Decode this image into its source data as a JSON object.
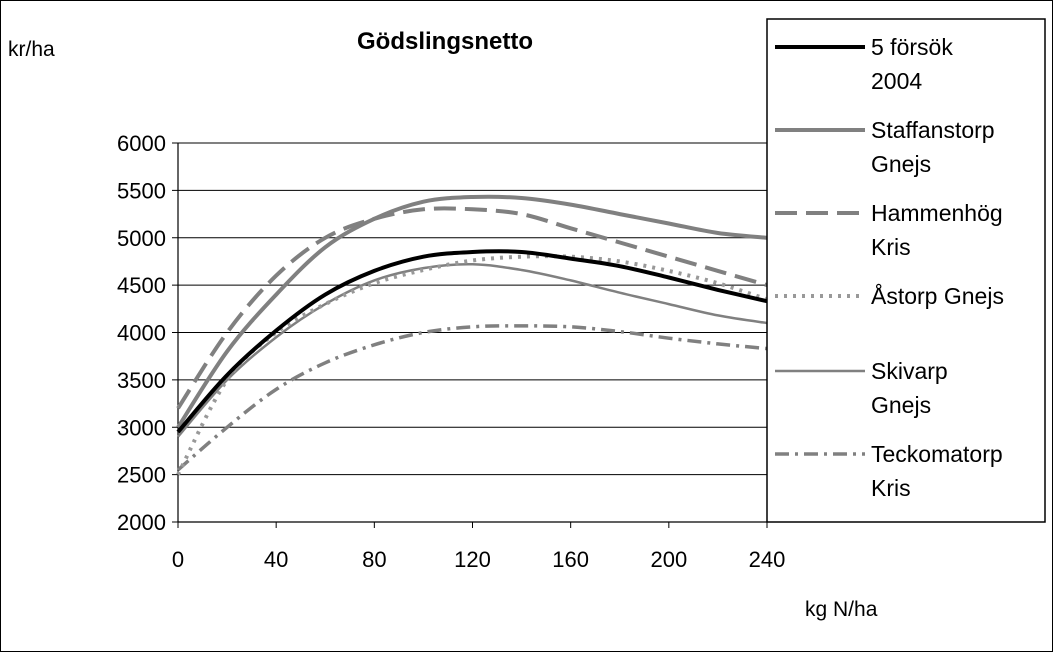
{
  "chart_data": {
    "type": "line",
    "title": "Gödslingsnetto",
    "ylabel": "kr/ha",
    "xlabel": "kg N/ha",
    "x_ticks": [
      0,
      40,
      80,
      120,
      160,
      200,
      240
    ],
    "y_ticks": [
      2000,
      2500,
      3000,
      3500,
      4000,
      4500,
      5000,
      5500,
      6000
    ],
    "xlim": [
      0,
      240
    ],
    "ylim": [
      2000,
      6000
    ],
    "grid": "horizontal",
    "legend_position": "right",
    "x": [
      0,
      20,
      40,
      60,
      80,
      100,
      120,
      140,
      160,
      180,
      200,
      220,
      240
    ],
    "series": [
      {
        "name": "5 försök 2004",
        "values": [
          2950,
          3550,
          4020,
          4400,
          4650,
          4800,
          4850,
          4850,
          4780,
          4700,
          4580,
          4450,
          4330
        ],
        "color": "#000000",
        "stroke_width": 4,
        "dash": ""
      },
      {
        "name": "Staffanstorp Gnejs",
        "values": [
          3000,
          3800,
          4400,
          4900,
          5200,
          5380,
          5430,
          5420,
          5350,
          5250,
          5150,
          5050,
          5000
        ],
        "color": "#808080",
        "stroke_width": 4,
        "dash": ""
      },
      {
        "name": "Hammenhög Kris",
        "values": [
          3200,
          4000,
          4600,
          5000,
          5200,
          5300,
          5300,
          5250,
          5100,
          4950,
          4800,
          4650,
          4500
        ],
        "color": "#808080",
        "stroke_width": 4,
        "dash": "22 9"
      },
      {
        "name": "Åstorp Gnejs",
        "values": [
          2500,
          3500,
          4000,
          4300,
          4520,
          4660,
          4760,
          4800,
          4800,
          4750,
          4650,
          4520,
          4350
        ],
        "color": "#999999",
        "stroke_width": 4,
        "dash": "3 6"
      },
      {
        "name": "Skivarp Gnejs",
        "values": [
          2900,
          3500,
          3950,
          4300,
          4550,
          4680,
          4720,
          4660,
          4550,
          4420,
          4300,
          4180,
          4100
        ],
        "color": "#808080",
        "stroke_width": 2.5,
        "dash": ""
      },
      {
        "name": "Teckomatorp Kris",
        "values": [
          2550,
          3000,
          3400,
          3680,
          3870,
          4000,
          4060,
          4070,
          4060,
          4010,
          3940,
          3880,
          3830
        ],
        "color": "#808080",
        "stroke_width": 3.5,
        "dash": "14 6 3 6"
      }
    ],
    "legend_labels": [
      [
        "5 försök",
        "2004"
      ],
      [
        "Staffanstorp",
        "Gnejs"
      ],
      [
        "Hammenhög",
        "Kris"
      ],
      [
        "Åstorp Gnejs"
      ],
      [
        "Skivarp",
        "Gnejs"
      ],
      [
        "Teckomatorp",
        "Kris"
      ]
    ]
  }
}
